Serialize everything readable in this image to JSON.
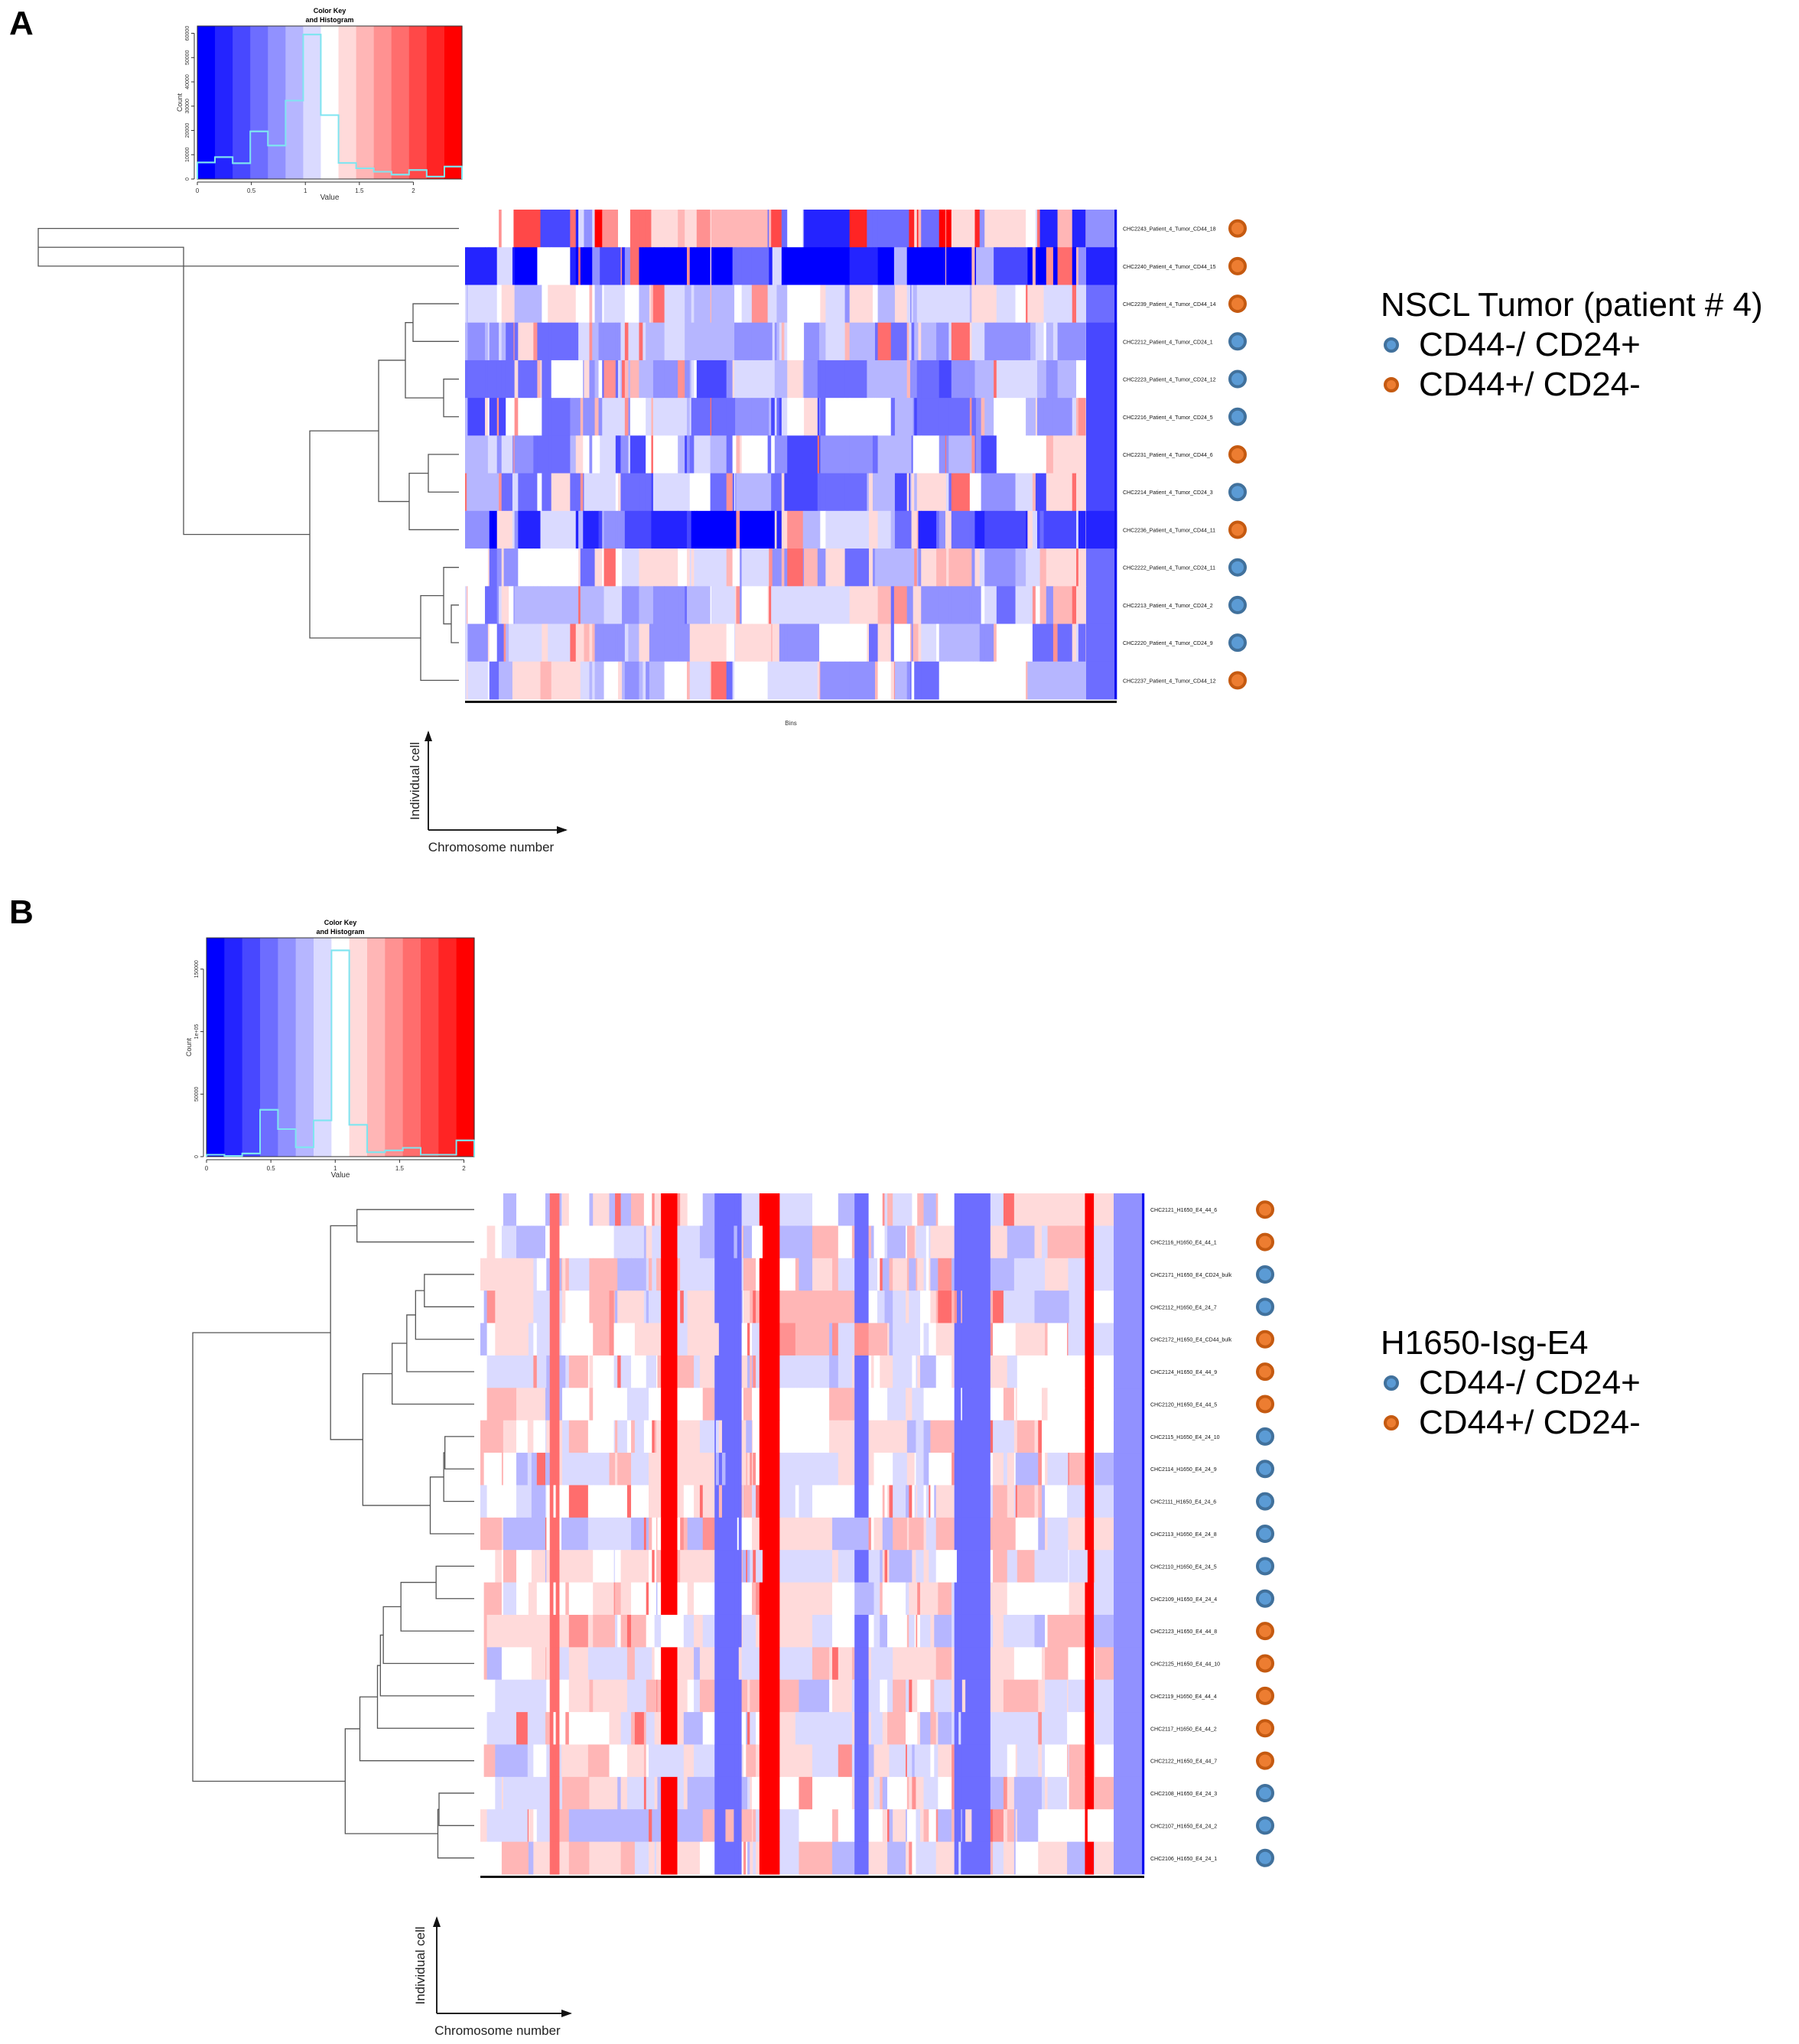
{
  "figure": {
    "panels": [
      "A",
      "B"
    ]
  },
  "colors": {
    "cd24_fill": "#5b9bd5",
    "cd24_stroke": "#41719c",
    "cd44_fill": "#ed7d31",
    "cd44_stroke": "#c55a11",
    "histogram_line": "#7fe5f0",
    "dendrogram_line": "#555555",
    "palette": [
      "#0000ff",
      "#2424ff",
      "#4848ff",
      "#6d6dff",
      "#9191ff",
      "#b6b6ff",
      "#dadaff",
      "#ffffff",
      "#ffdada",
      "#ffb6b6",
      "#ff9191",
      "#ff6d6d",
      "#ff4848",
      "#ff2424",
      "#ff0000"
    ]
  },
  "legend_A": {
    "title": "NSCL Tumor (patient # 4)",
    "items": [
      {
        "label": "CD44-/ CD24+",
        "group": "cd24"
      },
      {
        "label": "CD44+/ CD24-",
        "group": "cd44"
      }
    ]
  },
  "legend_B": {
    "title": "H1650-Isg-E4",
    "items": [
      {
        "label": "CD44-/ CD24+",
        "group": "cd24"
      },
      {
        "label": "CD44+/ CD24-",
        "group": "cd44"
      }
    ]
  },
  "axis_schematic": {
    "y_label": "Individual cell",
    "x_label": "Chromosome number"
  },
  "chart_data": [
    {
      "type": "bar",
      "panel": "A",
      "title": "Color Key\nand Histogram",
      "xlabel": "Value",
      "ylabel": "Count",
      "xlim": [
        0,
        2.45
      ],
      "ylim": [
        0,
        63000
      ],
      "xticks": [
        "0",
        "0.5",
        "1",
        "1.5",
        "2"
      ],
      "xtick_values": [
        0,
        0.5,
        1,
        1.5,
        2
      ],
      "yticks": [
        "0",
        "10000",
        "20000",
        "30000",
        "40000",
        "50000",
        "60000"
      ],
      "ytick_values": [
        0,
        10000,
        20000,
        30000,
        40000,
        50000,
        60000
      ],
      "bin_edges": [
        0,
        0.163,
        0.327,
        0.49,
        0.653,
        0.817,
        0.98,
        1.143,
        1.307,
        1.47,
        1.633,
        1.797,
        1.96,
        2.123,
        2.287,
        2.45
      ],
      "values": [
        6800,
        9000,
        6500,
        19600,
        13800,
        32300,
        59500,
        26300,
        6600,
        4400,
        3000,
        1800,
        3700,
        1000,
        5100
      ]
    },
    {
      "type": "bar",
      "panel": "B",
      "title": "Color Key\nand Histogram",
      "xlabel": "Value",
      "ylabel": "Count",
      "xlim": [
        0,
        2.08
      ],
      "ylim": [
        0,
        175000
      ],
      "xticks": [
        "0",
        "0.5",
        "1",
        "1.5",
        "2"
      ],
      "xtick_values": [
        0,
        0.5,
        1,
        1.5,
        2
      ],
      "yticks": [
        "0",
        "50000",
        "1e+05",
        "150000"
      ],
      "ytick_values": [
        0,
        50000,
        100000,
        150000
      ],
      "bin_edges": [
        0,
        0.139,
        0.277,
        0.416,
        0.555,
        0.693,
        0.832,
        0.971,
        1.109,
        1.248,
        1.387,
        1.525,
        1.664,
        1.803,
        1.941,
        2.08
      ],
      "values": [
        1500,
        500,
        2500,
        37500,
        22000,
        7500,
        29000,
        165000,
        25500,
        3500,
        5000,
        7000,
        1500,
        1500,
        13000
      ]
    },
    {
      "type": "heatmap",
      "panel": "A",
      "xlabel": "Bins",
      "value_range": [
        0,
        2.45
      ],
      "rows": [
        {
          "label": "CHC2243_Patient_4_Tumor_CD44_18",
          "group": "cd44"
        },
        {
          "label": "CHC2240_Patient_4_Tumor_CD44_15",
          "group": "cd44"
        },
        {
          "label": "CHC2239_Patient_4_Tumor_CD44_14",
          "group": "cd44"
        },
        {
          "label": "CHC2212_Patient_4_Tumor_CD24_1",
          "group": "cd24"
        },
        {
          "label": "CHC2223_Patient_4_Tumor_CD24_12",
          "group": "cd24"
        },
        {
          "label": "CHC2216_Patient_4_Tumor_CD24_5",
          "group": "cd24"
        },
        {
          "label": "CHC2231_Patient_4_Tumor_CD44_6",
          "group": "cd44"
        },
        {
          "label": "CHC2214_Patient_4_Tumor_CD24_3",
          "group": "cd24"
        },
        {
          "label": "CHC2236_Patient_4_Tumor_CD44_11",
          "group": "cd44"
        },
        {
          "label": "CHC2222_Patient_4_Tumor_CD24_11",
          "group": "cd24"
        },
        {
          "label": "CHC2213_Patient_4_Tumor_CD24_2",
          "group": "cd24"
        },
        {
          "label": "CHC2220_Patient_4_Tumor_CD24_9",
          "group": "cd24"
        },
        {
          "label": "CHC2237_Patient_4_Tumor_CD44_12",
          "group": "cd44"
        }
      ],
      "row_profile": [
        {
          "base": 7,
          "spread": 7
        },
        {
          "base": 1,
          "spread": 6
        },
        {
          "base": 6,
          "spread": 2
        },
        {
          "base": 5,
          "spread": 2
        },
        {
          "base": 5,
          "spread": 3
        },
        {
          "base": 5,
          "spread": 3
        },
        {
          "base": 5,
          "spread": 3
        },
        {
          "base": 5,
          "spread": 3
        },
        {
          "base": 4,
          "spread": 4
        },
        {
          "base": 6,
          "spread": 3
        },
        {
          "base": 6,
          "spread": 3
        },
        {
          "base": 6,
          "spread": 3
        },
        {
          "base": 6,
          "spread": 3
        }
      ],
      "dendrogram": {
        "merges": [
          [
            0,
            1,
            0.78
          ],
          [
            2,
            3,
            0.1
          ],
          [
            4,
            5,
            0.07
          ],
          [
            13,
            14,
            0.15
          ],
          [
            6,
            7,
            0.09
          ],
          [
            16,
            8,
            0.14
          ],
          [
            15,
            17,
            0.24
          ],
          [
            10,
            11,
            0.05
          ],
          [
            19,
            9,
            0.07
          ],
          [
            20,
            12,
            0.13
          ],
          [
            18,
            21,
            0.52
          ],
          [
            22,
            -1,
            0
          ]
        ]
      }
    },
    {
      "type": "heatmap",
      "panel": "B",
      "xlabel": "",
      "value_range": [
        0,
        2.08
      ],
      "rows": [
        {
          "label": "CHC2121_H1650_E4_44_6",
          "group": "cd44"
        },
        {
          "label": "CHC2116_H1650_E4_44_1",
          "group": "cd44"
        },
        {
          "label": "CHC2171_H1650_E4_CD24_bulk",
          "group": "cd24"
        },
        {
          "label": "CHC2112_H1650_E4_24_7",
          "group": "cd24"
        },
        {
          "label": "CHC2172_H1650_E4_CD44_bulk",
          "group": "cd44"
        },
        {
          "label": "CHC2124_H1650_E4_44_9",
          "group": "cd44"
        },
        {
          "label": "CHC2120_H1650_E4_44_5",
          "group": "cd44"
        },
        {
          "label": "CHC2115_H1650_E4_24_10",
          "group": "cd24"
        },
        {
          "label": "CHC2114_H1650_E4_24_9",
          "group": "cd24"
        },
        {
          "label": "CHC2111_H1650_E4_24_6",
          "group": "cd24"
        },
        {
          "label": "CHC2113_H1650_E4_24_8",
          "group": "cd24"
        },
        {
          "label": "CHC2110_H1650_E4_24_5",
          "group": "cd24"
        },
        {
          "label": "CHC2109_H1650_E4_24_4",
          "group": "cd24"
        },
        {
          "label": "CHC2123_H1650_E4_44_8",
          "group": "cd44"
        },
        {
          "label": "CHC2125_H1650_E4_44_10",
          "group": "cd44"
        },
        {
          "label": "CHC2119_H1650_E4_44_4",
          "group": "cd44"
        },
        {
          "label": "CHC2117_H1650_E4_44_2",
          "group": "cd44"
        },
        {
          "label": "CHC2122_H1650_E4_44_7",
          "group": "cd44"
        },
        {
          "label": "CHC2108_H1650_E4_24_3",
          "group": "cd24"
        },
        {
          "label": "CHC2107_H1650_E4_24_2",
          "group": "cd24"
        },
        {
          "label": "CHC2106_H1650_E4_24_1",
          "group": "cd24"
        }
      ]
    }
  ]
}
